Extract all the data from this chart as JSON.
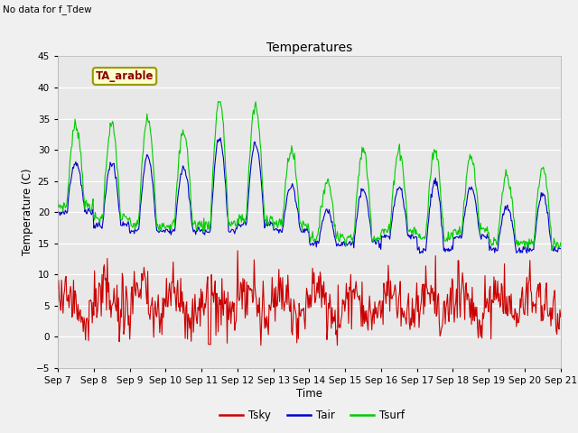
{
  "title": "Temperatures",
  "xlabel": "Time",
  "ylabel": "Temperature (C)",
  "note": "No data for f_Tdew",
  "station_label": "TA_arable",
  "ylim": [
    -5,
    45
  ],
  "xlim_days": [
    0,
    14
  ],
  "x_ticks_labels": [
    "Sep 7",
    "Sep 8",
    "Sep 9",
    "Sep 10",
    "Sep 11",
    "Sep 12",
    "Sep 13",
    "Sep 14",
    "Sep 15",
    "Sep 16",
    "Sep 17",
    "Sep 18",
    "Sep 19",
    "Sep 20",
    "Sep 21"
  ],
  "colors": {
    "Tsky": "#cc0000",
    "Tair": "#0000cc",
    "Tsurf": "#00cc00",
    "background": "#e8e8e8",
    "fig_bg": "#f0f0f0",
    "grid": "#ffffff"
  }
}
